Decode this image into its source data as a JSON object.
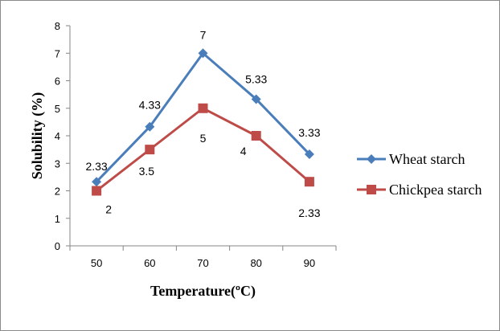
{
  "chart_data": {
    "type": "line",
    "categories": [
      "50",
      "60",
      "70",
      "80",
      "90"
    ],
    "series": [
      {
        "name": "Wheat starch",
        "values": [
          2.33,
          4.33,
          7,
          5.33,
          3.33
        ],
        "labels": [
          "2.33",
          "4.33",
          "7",
          "5.33",
          "3.33"
        ],
        "color": "#4a7ebb",
        "marker": "diamond"
      },
      {
        "name": "Chickpea starch",
        "values": [
          2,
          3.5,
          5,
          4,
          2.33
        ],
        "labels": [
          "2",
          "3.5",
          "5",
          "4",
          "2.33"
        ],
        "color": "#be4b48",
        "marker": "square"
      }
    ],
    "y_ticks": [
      "0",
      "1",
      "2",
      "3",
      "4",
      "5",
      "6",
      "7",
      "8"
    ],
    "ylim": [
      0,
      8
    ],
    "xlabel": "Temperature(ºC)",
    "ylabel": "Solubility (%)",
    "legend_position": "right",
    "grid": false
  }
}
